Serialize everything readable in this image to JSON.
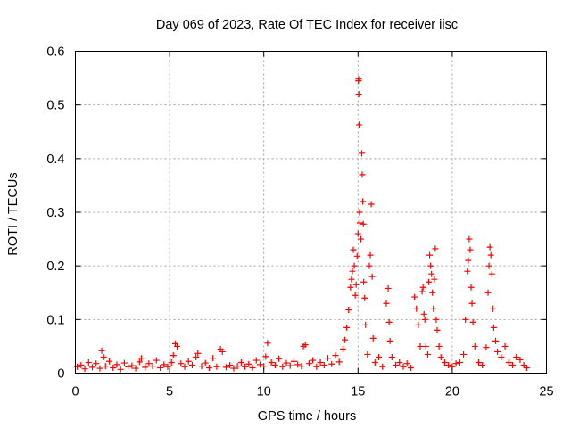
{
  "chart_data": {
    "type": "scatter",
    "title": "Day 069 of 2023, Rate Of TEC Index for receiver iisc",
    "xlabel": "GPS time / hours",
    "ylabel": "ROTI / TECUs",
    "xlim": [
      0,
      25
    ],
    "ylim": [
      0,
      0.6
    ],
    "xticks": [
      0,
      5,
      10,
      15,
      20,
      25
    ],
    "yticks": [
      0,
      0.1,
      0.2,
      0.3,
      0.4,
      0.5,
      0.6
    ],
    "xtick_labels": [
      "0",
      "5",
      "10",
      "15",
      "20",
      "25"
    ],
    "ytick_labels": [
      "0",
      "0.1",
      "0.2",
      "0.3",
      "0.4",
      "0.5",
      "0.6"
    ],
    "grid": true,
    "marker": "+",
    "series": [
      {
        "name": "ROTI",
        "color": "#ff0000",
        "points": [
          [
            0.1,
            0.012
          ],
          [
            0.3,
            0.015
          ],
          [
            0.5,
            0.008
          ],
          [
            0.7,
            0.02
          ],
          [
            0.9,
            0.011
          ],
          [
            1.1,
            0.018
          ],
          [
            1.3,
            0.009
          ],
          [
            1.4,
            0.042
          ],
          [
            1.5,
            0.03
          ],
          [
            1.6,
            0.013
          ],
          [
            1.8,
            0.022
          ],
          [
            2.0,
            0.01
          ],
          [
            2.2,
            0.016
          ],
          [
            2.4,
            0.007
          ],
          [
            2.6,
            0.019
          ],
          [
            2.8,
            0.012
          ],
          [
            3.0,
            0.014
          ],
          [
            3.2,
            0.009
          ],
          [
            3.4,
            0.021
          ],
          [
            3.5,
            0.028
          ],
          [
            3.7,
            0.011
          ],
          [
            3.9,
            0.018
          ],
          [
            4.1,
            0.013
          ],
          [
            4.3,
            0.024
          ],
          [
            4.5,
            0.01
          ],
          [
            4.7,
            0.016
          ],
          [
            4.9,
            0.012
          ],
          [
            5.1,
            0.02
          ],
          [
            5.2,
            0.033
          ],
          [
            5.3,
            0.055
          ],
          [
            5.4,
            0.05
          ],
          [
            5.6,
            0.018
          ],
          [
            5.8,
            0.012
          ],
          [
            6.0,
            0.022
          ],
          [
            6.2,
            0.015
          ],
          [
            6.4,
            0.03
          ],
          [
            6.5,
            0.037
          ],
          [
            6.7,
            0.013
          ],
          [
            6.9,
            0.019
          ],
          [
            7.1,
            0.01
          ],
          [
            7.3,
            0.028
          ],
          [
            7.5,
            0.012
          ],
          [
            7.7,
            0.045
          ],
          [
            7.8,
            0.04
          ],
          [
            8.0,
            0.011
          ],
          [
            8.2,
            0.015
          ],
          [
            8.4,
            0.009
          ],
          [
            8.6,
            0.013
          ],
          [
            8.8,
            0.02
          ],
          [
            9.0,
            0.012
          ],
          [
            9.2,
            0.017
          ],
          [
            9.4,
            0.01
          ],
          [
            9.6,
            0.024
          ],
          [
            9.8,
            0.016
          ],
          [
            10.0,
            0.013
          ],
          [
            10.1,
            0.031
          ],
          [
            10.2,
            0.056
          ],
          [
            10.4,
            0.02
          ],
          [
            10.6,
            0.015
          ],
          [
            10.8,
            0.027
          ],
          [
            11.0,
            0.012
          ],
          [
            11.2,
            0.019
          ],
          [
            11.4,
            0.014
          ],
          [
            11.6,
            0.022
          ],
          [
            11.8,
            0.016
          ],
          [
            12.0,
            0.013
          ],
          [
            12.1,
            0.05
          ],
          [
            12.2,
            0.053
          ],
          [
            12.4,
            0.018
          ],
          [
            12.6,
            0.024
          ],
          [
            12.8,
            0.012
          ],
          [
            13.0,
            0.02
          ],
          [
            13.2,
            0.015
          ],
          [
            13.4,
            0.028
          ],
          [
            13.6,
            0.017
          ],
          [
            13.8,
            0.033
          ],
          [
            14.0,
            0.021
          ],
          [
            14.2,
            0.045
          ],
          [
            14.3,
            0.062
          ],
          [
            14.4,
            0.085
          ],
          [
            14.5,
            0.118
          ],
          [
            14.6,
            0.16
          ],
          [
            14.65,
            0.175
          ],
          [
            14.7,
            0.19
          ],
          [
            14.75,
            0.23
          ],
          [
            14.8,
            0.2
          ],
          [
            14.85,
            0.145
          ],
          [
            14.9,
            0.165
          ],
          [
            14.95,
            0.218
          ],
          [
            15.0,
            0.26
          ],
          [
            15.02,
            0.545
          ],
          [
            15.03,
            0.548
          ],
          [
            15.04,
            0.52
          ],
          [
            15.06,
            0.463
          ],
          [
            15.08,
            0.3
          ],
          [
            15.1,
            0.28
          ],
          [
            15.15,
            0.25
          ],
          [
            15.2,
            0.41
          ],
          [
            15.22,
            0.37
          ],
          [
            15.25,
            0.32
          ],
          [
            15.28,
            0.278
          ],
          [
            15.3,
            0.17
          ],
          [
            15.35,
            0.14
          ],
          [
            15.4,
            0.09
          ],
          [
            15.5,
            0.035
          ],
          [
            15.6,
            0.2
          ],
          [
            15.65,
            0.22
          ],
          [
            15.7,
            0.315
          ],
          [
            15.75,
            0.18
          ],
          [
            15.8,
            0.065
          ],
          [
            15.9,
            0.02
          ],
          [
            16.1,
            0.03
          ],
          [
            16.3,
            0.012
          ],
          [
            16.5,
            0.13
          ],
          [
            16.6,
            0.158
          ],
          [
            16.65,
            0.095
          ],
          [
            16.7,
            0.06
          ],
          [
            16.8,
            0.03
          ],
          [
            17.0,
            0.015
          ],
          [
            17.2,
            0.02
          ],
          [
            17.4,
            0.012
          ],
          [
            17.6,
            0.018
          ],
          [
            17.8,
            0.01
          ],
          [
            18.0,
            0.142
          ],
          [
            18.1,
            0.12
          ],
          [
            18.2,
            0.09
          ],
          [
            18.3,
            0.05
          ],
          [
            18.4,
            0.152
          ],
          [
            18.45,
            0.16
          ],
          [
            18.5,
            0.11
          ],
          [
            18.55,
            0.1
          ],
          [
            18.6,
            0.05
          ],
          [
            18.7,
            0.035
          ],
          [
            18.75,
            0.17
          ],
          [
            18.8,
            0.22
          ],
          [
            18.85,
            0.2
          ],
          [
            18.9,
            0.185
          ],
          [
            18.95,
            0.15
          ],
          [
            19.0,
            0.12
          ],
          [
            19.05,
            0.175
          ],
          [
            19.1,
            0.232
          ],
          [
            19.15,
            0.1
          ],
          [
            19.2,
            0.08
          ],
          [
            19.3,
            0.05
          ],
          [
            19.4,
            0.03
          ],
          [
            19.6,
            0.02
          ],
          [
            19.8,
            0.015
          ],
          [
            20.0,
            0.012
          ],
          [
            20.2,
            0.018
          ],
          [
            20.4,
            0.02
          ],
          [
            20.6,
            0.035
          ],
          [
            20.7,
            0.1
          ],
          [
            20.8,
            0.19
          ],
          [
            20.85,
            0.21
          ],
          [
            20.9,
            0.25
          ],
          [
            20.95,
            0.23
          ],
          [
            21.0,
            0.16
          ],
          [
            21.05,
            0.13
          ],
          [
            21.1,
            0.095
          ],
          [
            21.2,
            0.05
          ],
          [
            21.4,
            0.02
          ],
          [
            21.6,
            0.015
          ],
          [
            21.8,
            0.048
          ],
          [
            21.9,
            0.15
          ],
          [
            21.95,
            0.2
          ],
          [
            22.0,
            0.235
          ],
          [
            22.05,
            0.22
          ],
          [
            22.1,
            0.185
          ],
          [
            22.15,
            0.12
          ],
          [
            22.2,
            0.085
          ],
          [
            22.3,
            0.06
          ],
          [
            22.4,
            0.04
          ],
          [
            22.6,
            0.03
          ],
          [
            22.8,
            0.05
          ],
          [
            23.0,
            0.02
          ],
          [
            23.2,
            0.015
          ],
          [
            23.4,
            0.03
          ],
          [
            23.6,
            0.025
          ],
          [
            23.8,
            0.015
          ],
          [
            23.95,
            0.01
          ]
        ]
      }
    ]
  }
}
